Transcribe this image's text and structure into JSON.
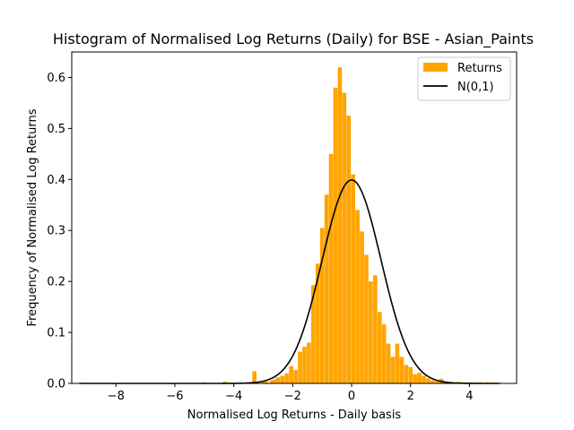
{
  "chart_data": {
    "type": "bar",
    "title": "Histogram of Normalised Log Returns (Daily) for BSE - Asian_Paints",
    "xlabel": "Normalised Log Returns - Daily basis",
    "ylabel": "Frequency of Normalised Log Returns",
    "xlim": [
      -9.5,
      5.6
    ],
    "ylim": [
      0,
      0.65
    ],
    "xticks": [
      -8,
      -6,
      -4,
      -2,
      0,
      2,
      4
    ],
    "yticks": [
      0.0,
      0.1,
      0.2,
      0.3,
      0.4,
      0.5,
      0.6
    ],
    "xtick_labels": [
      "−8",
      "−6",
      "−4",
      "−2",
      "0",
      "2",
      "4"
    ],
    "ytick_labels": [
      "0.0",
      "0.1",
      "0.2",
      "0.3",
      "0.4",
      "0.5",
      "0.6"
    ],
    "grid": false,
    "legend_position": "top-right",
    "bar_color": "#ffa500",
    "line_color": "#000000",
    "series": [
      {
        "name": "Returns",
        "kind": "histogram",
        "bin_width": 0.142,
        "x": [
          -9.2,
          -5.0,
          -4.3,
          -3.3,
          -3.0,
          -2.9,
          -2.7,
          -2.6,
          -2.5,
          -2.35,
          -2.2,
          -2.05,
          -1.9,
          -1.75,
          -1.6,
          -1.45,
          -1.3,
          -1.15,
          -1.0,
          -0.85,
          -0.7,
          -0.55,
          -0.4,
          -0.25,
          -0.1,
          0.05,
          0.2,
          0.35,
          0.5,
          0.65,
          0.8,
          0.95,
          1.1,
          1.25,
          1.4,
          1.55,
          1.7,
          1.85,
          2.0,
          2.15,
          2.3,
          2.45,
          2.6,
          2.75,
          2.9,
          3.05,
          3.2,
          3.35,
          3.5,
          3.65,
          3.8,
          3.95,
          4.1,
          4.4,
          4.6,
          4.8,
          5.0
        ],
        "values": [
          0.002,
          0.002,
          0.003,
          0.024,
          0.004,
          0.004,
          0.006,
          0.008,
          0.012,
          0.015,
          0.02,
          0.034,
          0.026,
          0.062,
          0.072,
          0.08,
          0.193,
          0.235,
          0.305,
          0.37,
          0.45,
          0.58,
          0.62,
          0.57,
          0.525,
          0.41,
          0.34,
          0.298,
          0.252,
          0.2,
          0.212,
          0.14,
          0.116,
          0.078,
          0.052,
          0.078,
          0.052,
          0.036,
          0.032,
          0.018,
          0.021,
          0.015,
          0.01,
          0.006,
          0.004,
          0.009,
          0.004,
          0.002,
          0.002,
          0.003,
          0.002,
          0.002,
          0.002,
          0.002,
          0.002,
          0.002,
          0.002
        ]
      },
      {
        "name": "N(0,1)",
        "kind": "line",
        "function": "standard_normal_pdf",
        "x_range": [
          -9.2,
          5.0
        ]
      }
    ]
  }
}
